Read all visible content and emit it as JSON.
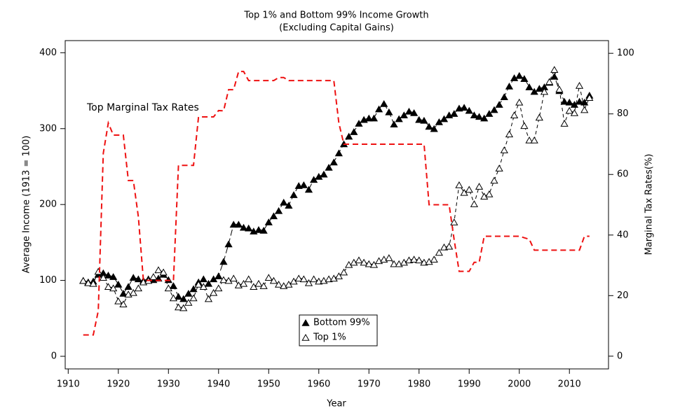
{
  "chart_data": {
    "type": "line",
    "title": "Top 1% and Bottom 99% Income Growth",
    "subtitle": "(Excluding Capital Gains)",
    "x_label": "Year",
    "y_label": "Average Income (1913 = 100)",
    "y2_label": "Marginal Tax Rates(%)",
    "xlim": [
      1909.4,
      2017.8
    ],
    "xticks": [
      1910,
      1920,
      1930,
      1940,
      1950,
      1960,
      1970,
      1980,
      1990,
      2000,
      2010
    ],
    "ylim": [
      -16.6,
      416
    ],
    "yticks": [
      0,
      100,
      200,
      300,
      400
    ],
    "y2lim": [
      -4.2,
      104.2
    ],
    "y2ticks": [
      0,
      20,
      40,
      60,
      80,
      100
    ],
    "legend": "bottom",
    "x": [
      1913,
      1914,
      1915,
      1916,
      1917,
      1918,
      1919,
      1920,
      1921,
      1922,
      1923,
      1924,
      1925,
      1926,
      1927,
      1928,
      1929,
      1930,
      1931,
      1932,
      1933,
      1934,
      1935,
      1936,
      1937,
      1938,
      1939,
      1940,
      1941,
      1942,
      1943,
      1944,
      1945,
      1946,
      1947,
      1948,
      1949,
      1950,
      1951,
      1952,
      1953,
      1954,
      1955,
      1956,
      1957,
      1958,
      1959,
      1960,
      1961,
      1962,
      1963,
      1964,
      1965,
      1966,
      1967,
      1968,
      1969,
      1970,
      1971,
      1972,
      1973,
      1974,
      1975,
      1976,
      1977,
      1978,
      1979,
      1980,
      1981,
      1982,
      1983,
      1984,
      1985,
      1986,
      1987,
      1988,
      1989,
      1990,
      1991,
      1992,
      1993,
      1994,
      1995,
      1996,
      1997,
      1998,
      1999,
      2000,
      2001,
      2002,
      2003,
      2004,
      2005,
      2006,
      2007,
      2008,
      2009,
      2010,
      2011,
      2012,
      2013,
      2014
    ],
    "series": [
      {
        "name": "Bottom 99%",
        "color": "#000000",
        "marker": "filled-triangle",
        "values": [
          100,
          98,
          99,
          108,
          110,
          107,
          105,
          95,
          83,
          92,
          104,
          102,
          100,
          102,
          101,
          103,
          108,
          101,
          93,
          79,
          76,
          83,
          89,
          98,
          102,
          96,
          102,
          106,
          125,
          148,
          174,
          174,
          170,
          169,
          165,
          167,
          166,
          177,
          185,
          192,
          203,
          199,
          213,
          225,
          226,
          220,
          233,
          237,
          240,
          249,
          256,
          268,
          280,
          290,
          296,
          307,
          312,
          314,
          314,
          326,
          333,
          322,
          306,
          313,
          318,
          323,
          321,
          312,
          311,
          303,
          300,
          309,
          313,
          318,
          320,
          327,
          328,
          324,
          318,
          316,
          314,
          320,
          325,
          332,
          342,
          356,
          367,
          370,
          366,
          355,
          349,
          353,
          355,
          361,
          369,
          350,
          336,
          335,
          332,
          336,
          335,
          344
        ]
      },
      {
        "name": "Top 1%",
        "color": "#000000",
        "marker": "open-triangle",
        "values": [
          100,
          97,
          96,
          112,
          104,
          92,
          90,
          73,
          69,
          82,
          84,
          90,
          98,
          100,
          105,
          114,
          111,
          90,
          77,
          65,
          64,
          71,
          77,
          95,
          92,
          76,
          84,
          90,
          101,
          100,
          103,
          94,
          96,
          102,
          92,
          96,
          93,
          104,
          100,
          95,
          93,
          95,
          99,
          103,
          102,
          97,
          102,
          99,
          100,
          102,
          103,
          106,
          111,
          121,
          124,
          127,
          124,
          122,
          121,
          126,
          128,
          130,
          122,
          122,
          124,
          127,
          128,
          127,
          124,
          125,
          128,
          137,
          144,
          145,
          177,
          226,
          216,
          220,
          201,
          224,
          211,
          214,
          232,
          248,
          272,
          293,
          318,
          335,
          304,
          285,
          285,
          315,
          349,
          362,
          378,
          352,
          307,
          324,
          321,
          357,
          325,
          341
        ]
      },
      {
        "name": "Top Marginal Tax Rates",
        "color": "#ee1111",
        "axis": "y2",
        "values": [
          7,
          7,
          7,
          15,
          67,
          77,
          73,
          73,
          73,
          58,
          58,
          46,
          25,
          25,
          25,
          25,
          25,
          25,
          25,
          63,
          63,
          63,
          63,
          79,
          79,
          79,
          79,
          81.1,
          81,
          88,
          88,
          94,
          94,
          91,
          91,
          91,
          91,
          91,
          91,
          92,
          92,
          91,
          91,
          91,
          91,
          91,
          91,
          91,
          91,
          91,
          91,
          77,
          70,
          70,
          70,
          70,
          70,
          70,
          70,
          70,
          70,
          70,
          70,
          70,
          70,
          70,
          70,
          70,
          70,
          50,
          50,
          50,
          50,
          50,
          38.5,
          28,
          28,
          28,
          31,
          31,
          39.6,
          39.6,
          39.6,
          39.6,
          39.6,
          39.6,
          39.6,
          39.6,
          39.1,
          38.6,
          35,
          35,
          35,
          35,
          35,
          35,
          35,
          35,
          35,
          35,
          39.6,
          39.6
        ]
      }
    ]
  }
}
